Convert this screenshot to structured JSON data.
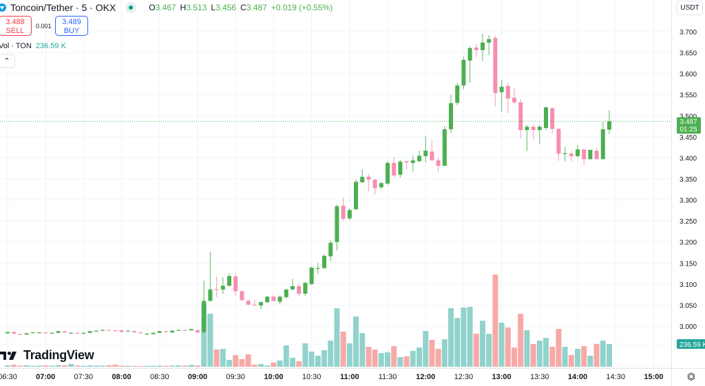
{
  "header": {
    "symbol_title": "Toncoin/Tether · 5 · OKX",
    "symbol_icon": "toncoin-icon",
    "status": "market-open-dot",
    "ohlc": [
      {
        "key": "O",
        "value": "3.467"
      },
      {
        "key": "H",
        "value": "3.513"
      },
      {
        "key": "L",
        "value": "3.456"
      },
      {
        "key": "C",
        "value": "3.487"
      }
    ],
    "change": "+0.019 (+0.55%)"
  },
  "trade": {
    "sell_price": "3.488",
    "sell_label": "SELL",
    "spread": "0.001",
    "buy_price": "3.489",
    "buy_label": "BUY"
  },
  "volume_legend": {
    "label": "Vol · TON",
    "value": "236.59 K"
  },
  "currency": "USDT",
  "brand": "TradingView",
  "colors": {
    "up": "#4caf50",
    "down": "#f48fb1",
    "vol_up": "#92d2cc",
    "vol_down": "#f7a9a7",
    "last_price": "#4caf50",
    "vol_label": "#26a69a"
  },
  "chart_data": {
    "type": "candlestick",
    "title": "",
    "interval_minutes": 5,
    "first_candle_time": "06:30",
    "ylim": [
      2.96,
      3.72
    ],
    "y_ticks": [
      "3.700",
      "3.650",
      "3.600",
      "3.550",
      "3.500",
      "3.450",
      "3.400",
      "3.350",
      "3.300",
      "3.250",
      "3.200",
      "3.150",
      "3.100",
      "3.050",
      "3.000"
    ],
    "x_ticks": [
      "06:30",
      "07:00",
      "07:30",
      "08:00",
      "08:30",
      "09:00",
      "09:30",
      "10:00",
      "10:30",
      "11:00",
      "11:30",
      "12:00",
      "12:30",
      "13:00",
      "13:30",
      "14:00",
      "14:30",
      "15:00"
    ],
    "grid": true,
    "last_price": {
      "value": 3.487,
      "label": "3.487",
      "countdown": "01:25"
    },
    "last_volume": {
      "value": 236.59,
      "label": "236.59 K"
    },
    "ohlc": [
      [
        2.983,
        2.987,
        2.982,
        2.986
      ],
      [
        2.986,
        2.987,
        2.981,
        2.982
      ],
      [
        2.981,
        2.982,
        2.979,
        2.98
      ],
      [
        2.98,
        2.984,
        2.979,
        2.983
      ],
      [
        2.985,
        2.986,
        2.984,
        2.985
      ],
      [
        2.985,
        2.986,
        2.984,
        2.985
      ],
      [
        2.985,
        2.986,
        2.983,
        2.984
      ],
      [
        2.984,
        2.985,
        2.983,
        2.984
      ],
      [
        2.984,
        2.989,
        2.983,
        2.988
      ],
      [
        2.988,
        2.989,
        2.984,
        2.985
      ],
      [
        2.984,
        2.986,
        2.983,
        2.984
      ],
      [
        2.984,
        2.985,
        2.981,
        2.982
      ],
      [
        2.982,
        2.985,
        2.981,
        2.984
      ],
      [
        2.984,
        2.989,
        2.983,
        2.988
      ],
      [
        2.989,
        2.99,
        2.988,
        2.989
      ],
      [
        2.989,
        2.992,
        2.988,
        2.991
      ],
      [
        2.991,
        2.992,
        2.989,
        2.99
      ],
      [
        2.99,
        2.991,
        2.988,
        2.989
      ],
      [
        2.99,
        2.991,
        2.985,
        2.986
      ],
      [
        2.989,
        2.99,
        2.988,
        2.989
      ],
      [
        2.988,
        2.989,
        2.984,
        2.985
      ],
      [
        2.985,
        2.986,
        2.982,
        2.983
      ],
      [
        2.982,
        2.984,
        2.98,
        2.982
      ],
      [
        2.981,
        2.985,
        2.98,
        2.984
      ],
      [
        2.984,
        2.989,
        2.983,
        2.988
      ],
      [
        2.988,
        2.989,
        2.984,
        2.986
      ],
      [
        2.985,
        2.99,
        2.984,
        2.989
      ],
      [
        2.99,
        2.992,
        2.989,
        2.991
      ],
      [
        2.991,
        2.992,
        2.989,
        2.99
      ],
      [
        2.99,
        2.994,
        2.989,
        2.993
      ],
      [
        2.99,
        2.992,
        2.983,
        2.985
      ],
      [
        2.986,
        3.108,
        2.982,
        3.06
      ],
      [
        3.06,
        3.177,
        3.058,
        3.087
      ],
      [
        3.088,
        3.118,
        3.069,
        3.087
      ],
      [
        3.087,
        3.116,
        3.077,
        3.096
      ],
      [
        3.096,
        3.126,
        3.094,
        3.119
      ],
      [
        3.118,
        3.126,
        3.072,
        3.083
      ],
      [
        3.083,
        3.085,
        3.059,
        3.062
      ],
      [
        3.06,
        3.064,
        3.05,
        3.051
      ],
      [
        3.051,
        3.063,
        3.05,
        3.05
      ],
      [
        3.049,
        3.058,
        3.04,
        3.057
      ],
      [
        3.057,
        3.072,
        3.055,
        3.07
      ],
      [
        3.07,
        3.073,
        3.059,
        3.06
      ],
      [
        3.058,
        3.073,
        3.052,
        3.07
      ],
      [
        3.069,
        3.089,
        3.065,
        3.087
      ],
      [
        3.087,
        3.113,
        3.086,
        3.095
      ],
      [
        3.095,
        3.101,
        3.071,
        3.077
      ],
      [
        3.077,
        3.105,
        3.071,
        3.103
      ],
      [
        3.1,
        3.142,
        3.097,
        3.139
      ],
      [
        3.137,
        3.15,
        3.124,
        3.138
      ],
      [
        3.138,
        3.171,
        3.137,
        3.167
      ],
      [
        3.166,
        3.205,
        3.155,
        3.198
      ],
      [
        3.2,
        3.289,
        3.18,
        3.285
      ],
      [
        3.286,
        3.306,
        3.25,
        3.255
      ],
      [
        3.256,
        3.28,
        3.252,
        3.276
      ],
      [
        3.278,
        3.348,
        3.275,
        3.343
      ],
      [
        3.342,
        3.373,
        3.34,
        3.355
      ],
      [
        3.355,
        3.362,
        3.32,
        3.348
      ],
      [
        3.348,
        3.35,
        3.313,
        3.328
      ],
      [
        3.33,
        3.342,
        3.325,
        3.34
      ],
      [
        3.339,
        3.392,
        3.336,
        3.388
      ],
      [
        3.388,
        3.402,
        3.353,
        3.358
      ],
      [
        3.36,
        3.394,
        3.353,
        3.391
      ],
      [
        3.392,
        3.393,
        3.372,
        3.389
      ],
      [
        3.388,
        3.405,
        3.367,
        3.394
      ],
      [
        3.392,
        3.417,
        3.39,
        3.405
      ],
      [
        3.404,
        3.452,
        3.39,
        3.417
      ],
      [
        3.415,
        3.443,
        3.393,
        3.394
      ],
      [
        3.394,
        3.4,
        3.368,
        3.381
      ],
      [
        3.381,
        3.475,
        3.381,
        3.468
      ],
      [
        3.468,
        3.55,
        3.458,
        3.53
      ],
      [
        3.531,
        3.578,
        3.525,
        3.572
      ],
      [
        3.572,
        3.64,
        3.563,
        3.633
      ],
      [
        3.631,
        3.665,
        3.579,
        3.661
      ],
      [
        3.662,
        3.671,
        3.64,
        3.656
      ],
      [
        3.656,
        3.695,
        3.63,
        3.674
      ],
      [
        3.674,
        3.692,
        3.644,
        3.682
      ],
      [
        3.685,
        3.69,
        3.522,
        3.554
      ],
      [
        3.556,
        3.585,
        3.51,
        3.569
      ],
      [
        3.571,
        3.578,
        3.506,
        3.541
      ],
      [
        3.543,
        3.567,
        3.527,
        3.532
      ],
      [
        3.532,
        3.54,
        3.446,
        3.466
      ],
      [
        3.466,
        3.478,
        3.416,
        3.474
      ],
      [
        3.474,
        3.479,
        3.443,
        3.466
      ],
      [
        3.466,
        3.478,
        3.432,
        3.474
      ],
      [
        3.471,
        3.522,
        3.466,
        3.52
      ],
      [
        3.518,
        3.52,
        3.458,
        3.469
      ],
      [
        3.469,
        3.47,
        3.393,
        3.41
      ],
      [
        3.41,
        3.426,
        3.392,
        3.411
      ],
      [
        3.41,
        3.416,
        3.392,
        3.404
      ],
      [
        3.404,
        3.43,
        3.4,
        3.42
      ],
      [
        3.42,
        3.421,
        3.382,
        3.397
      ],
      [
        3.397,
        3.419,
        3.395,
        3.419
      ],
      [
        3.417,
        3.424,
        3.396,
        3.397
      ],
      [
        3.397,
        3.485,
        3.395,
        3.468
      ],
      [
        3.467,
        3.513,
        3.456,
        3.487
      ]
    ],
    "volume_k": [
      14,
      22,
      12,
      16,
      10,
      12,
      14,
      12,
      16,
      14,
      28,
      12,
      10,
      14,
      12,
      12,
      16,
      22,
      12,
      10,
      8,
      6,
      10,
      10,
      12,
      10,
      12,
      14,
      12,
      20,
      14,
      660,
      552,
      180,
      186,
      72,
      122,
      79,
      129,
      22,
      29,
      14,
      43,
      65,
      222,
      93,
      57,
      244,
      158,
      115,
      172,
      272,
      609,
      366,
      244,
      523,
      351,
      208,
      179,
      143,
      150,
      215,
      100,
      108,
      165,
      200,
      373,
      280,
      186,
      287,
      610,
      509,
      617,
      624,
      344,
      480,
      344,
      961,
      459,
      409,
      200,
      552,
      380,
      237,
      272,
      301,
      208,
      394,
      208,
      122,
      186,
      215,
      115,
      237,
      272,
      236.59
    ]
  }
}
